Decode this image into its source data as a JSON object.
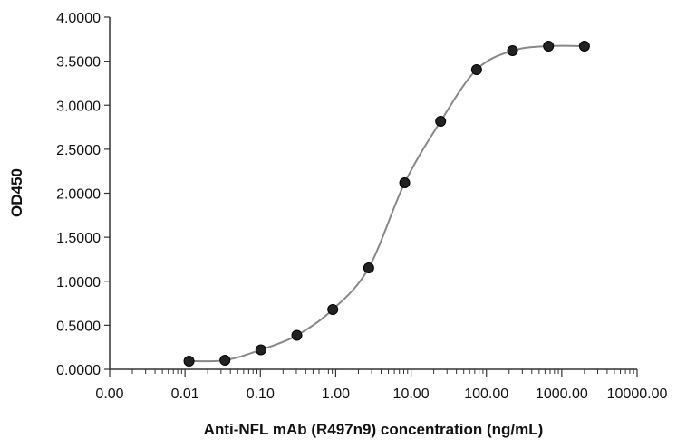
{
  "chart_data": {
    "type": "scatter",
    "title": "",
    "xlabel": "Anti-NFL mAb (R497n9) concentration (ng/mL)",
    "ylabel": "OD450",
    "x_scale": "log",
    "xlim": [
      0.001,
      10000
    ],
    "ylim": [
      0,
      4
    ],
    "x_tick_labels": [
      "0.00",
      "0.01",
      "0.10",
      "1.00",
      "10.00",
      "100.00",
      "1000.00",
      "10000.00"
    ],
    "y_tick_labels": [
      "0.0000",
      "0.5000",
      "1.0000",
      "1.5000",
      "2.0000",
      "2.5000",
      "3.0000",
      "3.5000",
      "4.0000"
    ],
    "grid": false,
    "fit_curve": true,
    "series": [
      {
        "x": [
          0.0113,
          0.0339,
          0.1016,
          0.3048,
          0.9145,
          2.7435,
          8.2305,
          24.691,
          74.074,
          222.22,
          666.67,
          2000
        ],
        "y": [
          0.093,
          0.103,
          0.221,
          0.386,
          0.679,
          1.152,
          2.118,
          2.818,
          3.404,
          3.619,
          3.671,
          3.671
        ]
      }
    ],
    "colors": {
      "points": "#222222",
      "curve": "#888888",
      "axis": "#333333"
    }
  }
}
